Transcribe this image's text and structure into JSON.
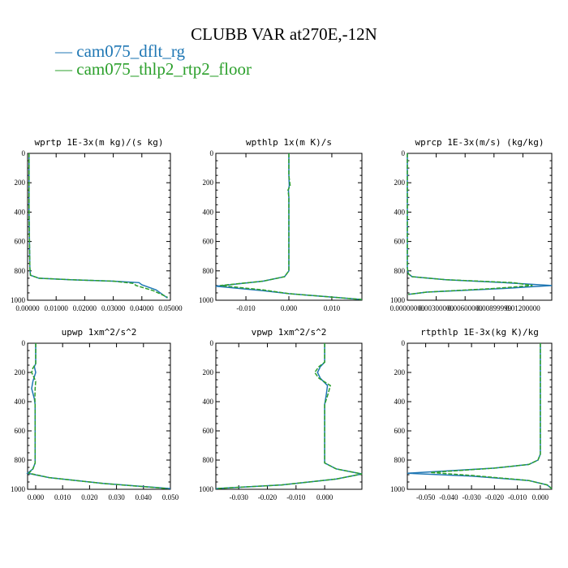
{
  "title": "CLUBB VAR at270E,-12N",
  "legend": [
    {
      "label": "cam075_dflt_rg",
      "color": "#1f77b4"
    },
    {
      "label": "cam075_thlp2_rtp2_floor",
      "color": "#2ca02c"
    }
  ],
  "chart_data": [
    {
      "type": "line",
      "title": "wprtp  1E-3x(m kg)/(s kg)",
      "xlim": [
        0,
        0.05
      ],
      "ylim": [
        1000,
        0
      ],
      "xticks": [
        0,
        0.01,
        0.02,
        0.03,
        0.04,
        0.05
      ],
      "xtick_labels": [
        "0.00000",
        "0.01000",
        "0.02000",
        "0.03000",
        "0.04000",
        "0.05000"
      ],
      "yticks": [
        0,
        200,
        400,
        600,
        800,
        1000
      ],
      "series": [
        {
          "name": "cam075_dflt_rg",
          "x": [
            0.0005,
            0.0005,
            0.0008,
            0.001,
            0.004,
            0.015,
            0.03,
            0.039,
            0.04,
            0.045,
            0.049
          ],
          "y": [
            0,
            400,
            780,
            830,
            850,
            860,
            870,
            880,
            895,
            930,
            985
          ]
        },
        {
          "name": "cam075_thlp2_rtp2_floor",
          "x": [
            0.0005,
            0.0005,
            0.0008,
            0.001,
            0.004,
            0.015,
            0.03,
            0.037,
            0.038,
            0.044,
            0.049
          ],
          "y": [
            0,
            400,
            780,
            830,
            850,
            860,
            870,
            885,
            900,
            935,
            980
          ]
        }
      ]
    },
    {
      "type": "line",
      "title": "wpthlp  1x(m K)/s",
      "xlim": [
        -0.017,
        0.017
      ],
      "ylim": [
        1000,
        0
      ],
      "xticks": [
        -0.01,
        0,
        0.01
      ],
      "xtick_labels": [
        "-0.010",
        "0.000",
        "0.010"
      ],
      "yticks": [
        0,
        200,
        400,
        600,
        800,
        1000
      ],
      "series": [
        {
          "name": "cam075_dflt_rg",
          "x": [
            0,
            0,
            0.0001,
            -0.0001,
            0,
            0,
            -0.001,
            -0.006,
            -0.017,
            -0.006,
            0,
            0.017
          ],
          "y": [
            0,
            150,
            220,
            250,
            300,
            800,
            840,
            870,
            905,
            935,
            955,
            995
          ]
        },
        {
          "name": "cam075_thlp2_rtp2_floor",
          "x": [
            0,
            0,
            0.0003,
            -0.0002,
            0,
            0,
            -0.001,
            -0.006,
            -0.016,
            -0.006,
            0,
            0.017
          ],
          "y": [
            0,
            150,
            220,
            250,
            300,
            800,
            840,
            870,
            900,
            930,
            955,
            995
          ]
        }
      ]
    },
    {
      "type": "line",
      "title": "wprcp  1E-3x(m/s) (kg/kg)",
      "xlim": [
        0,
        0.015
      ],
      "ylim": [
        1000,
        0
      ],
      "xticks": [
        0,
        0.003,
        0.006,
        0.009,
        0.012
      ],
      "xtick_labels": [
        "0.00000000",
        "0.00300000",
        "0.00600000",
        "0.00899999",
        "0.01200000"
      ],
      "yticks": [
        0,
        200,
        400,
        600,
        800,
        1000
      ],
      "series": [
        {
          "name": "cam075_dflt_rg",
          "x": [
            0,
            0,
            0.0001,
            0.0005,
            0.004,
            0.01,
            0.015,
            0.01,
            0.002,
            0.0001
          ],
          "y": [
            0,
            780,
            820,
            840,
            860,
            880,
            900,
            920,
            945,
            960
          ]
        },
        {
          "name": "cam075_thlp2_rtp2_floor",
          "x": [
            0,
            0,
            0.0001,
            0.0005,
            0.004,
            0.011,
            0.013,
            0.009,
            0.002,
            0.0001
          ],
          "y": [
            0,
            780,
            820,
            840,
            860,
            880,
            900,
            920,
            945,
            960
          ]
        }
      ]
    },
    {
      "type": "line",
      "title": "upwp  1xm^2/s^2",
      "xlim": [
        -0.003,
        0.05
      ],
      "ylim": [
        1000,
        0
      ],
      "xticks": [
        0,
        0.01,
        0.02,
        0.03,
        0.04,
        0.05
      ],
      "xtick_labels": [
        "0.000",
        "0.010",
        "0.020",
        "0.030",
        "0.040",
        "0.050"
      ],
      "yticks": [
        0,
        200,
        400,
        600,
        800,
        1000
      ],
      "series": [
        {
          "name": "cam075_dflt_rg",
          "x": [
            0,
            0,
            -0.0005,
            0,
            -0.001,
            -0.0015,
            -0.0005,
            -0.0002,
            -0.0002,
            -0.001,
            -0.003,
            0.005,
            0.025,
            0.05
          ],
          "y": [
            0,
            140,
            160,
            200,
            260,
            310,
            380,
            420,
            820,
            860,
            890,
            920,
            960,
            995
          ]
        },
        {
          "name": "cam075_thlp2_rtp2_floor",
          "x": [
            0,
            0,
            -0.001,
            -0.0015,
            0,
            -0.0002,
            -0.0003,
            -0.0002,
            -0.0002,
            -0.001,
            -0.0025,
            0.005,
            0.025,
            0.049
          ],
          "y": [
            0,
            140,
            170,
            200,
            260,
            310,
            380,
            420,
            820,
            860,
            890,
            920,
            960,
            995
          ]
        }
      ]
    },
    {
      "type": "line",
      "title": "vpwp  1xm^2/s^2",
      "xlim": [
        -0.038,
        0.013
      ],
      "ylim": [
        1000,
        0
      ],
      "xticks": [
        -0.03,
        -0.02,
        -0.01,
        0
      ],
      "xtick_labels": [
        "-0.030",
        "-0.020",
        "-0.010",
        "0.000"
      ],
      "yticks": [
        0,
        200,
        400,
        600,
        800,
        1000
      ],
      "series": [
        {
          "name": "cam075_dflt_rg",
          "x": [
            0,
            0,
            -0.0015,
            -0.0025,
            -0.0015,
            0.001,
            0.0005,
            0,
            0,
            0.004,
            0.013,
            0.004,
            -0.015,
            -0.038
          ],
          "y": [
            0,
            130,
            160,
            200,
            240,
            290,
            360,
            420,
            820,
            860,
            895,
            930,
            970,
            995
          ]
        },
        {
          "name": "cam075_thlp2_rtp2_floor",
          "x": [
            0,
            0,
            -0.002,
            -0.0035,
            -0.002,
            0.002,
            0.001,
            0,
            0,
            0.004,
            0.013,
            0.004,
            -0.015,
            -0.038
          ],
          "y": [
            0,
            130,
            160,
            200,
            240,
            290,
            360,
            420,
            820,
            860,
            895,
            930,
            970,
            995
          ]
        }
      ]
    },
    {
      "type": "line",
      "title": "rtpthlp  1E-3x(kg K)/kg",
      "xlim": [
        -0.058,
        0.005
      ],
      "ylim": [
        1000,
        0
      ],
      "xticks": [
        -0.05,
        -0.04,
        -0.03,
        -0.02,
        -0.01,
        0
      ],
      "xtick_labels": [
        "-0.050",
        "-0.040",
        "-0.030",
        "-0.020",
        "-0.010",
        "0.000"
      ],
      "yticks": [
        0,
        200,
        400,
        600,
        800,
        1000
      ],
      "series": [
        {
          "name": "cam075_dflt_rg",
          "x": [
            0,
            0,
            -0.001,
            -0.005,
            -0.02,
            -0.058,
            -0.03,
            -0.005,
            0.003,
            0.005
          ],
          "y": [
            0,
            760,
            800,
            830,
            855,
            890,
            910,
            940,
            970,
            995
          ]
        },
        {
          "name": "cam075_thlp2_rtp2_floor",
          "x": [
            0,
            0,
            -0.001,
            -0.005,
            -0.02,
            -0.048,
            -0.03,
            -0.005,
            0.003,
            0.005
          ],
          "y": [
            0,
            760,
            800,
            830,
            855,
            885,
            905,
            940,
            970,
            995
          ]
        }
      ]
    }
  ]
}
